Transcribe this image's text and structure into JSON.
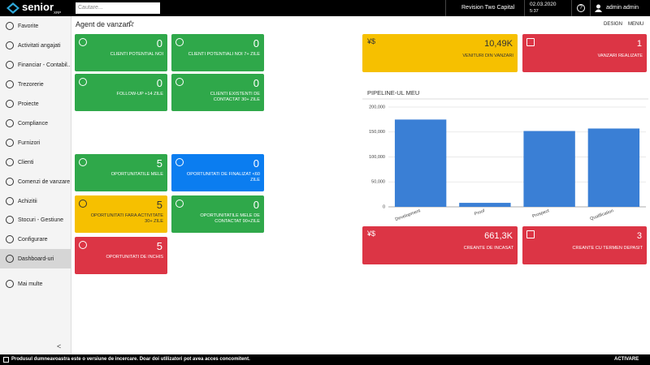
{
  "header": {
    "logo": "senior",
    "logo_sub": "XRP",
    "search_placeholder": "Cautare...",
    "company": "Revision Two Capital",
    "date": "02.03.2020",
    "time": "5:37",
    "help": "?",
    "user": "admin admin"
  },
  "sidebar": {
    "items": [
      "Favorite",
      "Activitati angajati",
      "Financiar - Contabil...",
      "Trezorerie",
      "Proiecte",
      "Compliance",
      "Furnizori",
      "Clienti",
      "Comenzi de vanzare",
      "Achizitii",
      "Stocuri - Gestiune",
      "Configurare",
      "Dashboard-uri",
      "Mai multe"
    ],
    "active": 12,
    "collapse": "<"
  },
  "page": {
    "title": "Agent de vanzari",
    "actions": [
      "DESIGN",
      "MENIU"
    ]
  },
  "tiles": [
    {
      "value": "0",
      "label": "CLIENTI POTENTIAL NOI",
      "color": "#2fa84a"
    },
    {
      "value": "0",
      "label": "CLIENTI POTENTIALI NOI 7+ ZILE",
      "color": "#2fa84a"
    },
    {
      "value": "0",
      "label": "FOLLOW-UP +14 ZILE",
      "color": "#2fa84a"
    },
    {
      "value": "0",
      "label": "CLIENTI EXISTENTI DE CONTACTAT 30+ ZILE",
      "color": "#2fa84a"
    },
    {
      "value": "5",
      "label": "OPORTUNITATILE MELE",
      "color": "#2fa84a"
    },
    {
      "value": "0",
      "label": "OPORTUNITATI DE FINALIZAT <60 ZILE",
      "color": "#0b7df0"
    },
    {
      "value": "5",
      "label": "OPORTUNITATI FARA ACTIVITATE 30+ ZILE",
      "color": "#f6c000",
      "text_color": "#333333"
    },
    {
      "value": "0",
      "label": "OPORTUNITATILE MELE DE CONTACTAT 90+ZILE",
      "color": "#2fa84a"
    },
    {
      "value": "5",
      "label": "OPORTUNITATI DE INCHIS",
      "color": "#dc3545"
    }
  ],
  "kpis": [
    {
      "icon_text": "¥$",
      "value": "10,49K",
      "label": "VENITURI DIN VANZARI",
      "color": "#f6c000",
      "text_color": "#333333"
    },
    {
      "value": "1",
      "label": "VANZARI REALIZATE",
      "color": "#dc3545"
    },
    {
      "icon_text": "¥$",
      "value": "661,3K",
      "label": "CREANTE DE INCASAT",
      "color": "#dc3545"
    },
    {
      "value": "3",
      "label": "CREANTE CU TERMEN DEPASIT",
      "color": "#dc3545"
    }
  ],
  "chart_data": {
    "type": "bar",
    "title": "PIPELINE-UL MEU",
    "categories": [
      "Development",
      "Proof",
      "Prospect",
      "Qualification"
    ],
    "values": [
      175000,
      8000,
      152000,
      157000
    ],
    "color": "#3a7fd5",
    "ylim": [
      0,
      200000
    ],
    "yticks": [
      0,
      {
        "value": 50000,
        "label": "50,000"
      },
      {
        "value": 100000,
        "label": "100,000"
      },
      {
        "value": 150000,
        "label": "150,000"
      },
      {
        "value": 200000,
        "label": "200,000"
      }
    ],
    "grid": true
  },
  "footer": {
    "message": "Produsul dumneavoastra este o versiune de incercare. Doar doi utilizatori pot avea acces concomitent.",
    "action": "ACTIVARE"
  }
}
